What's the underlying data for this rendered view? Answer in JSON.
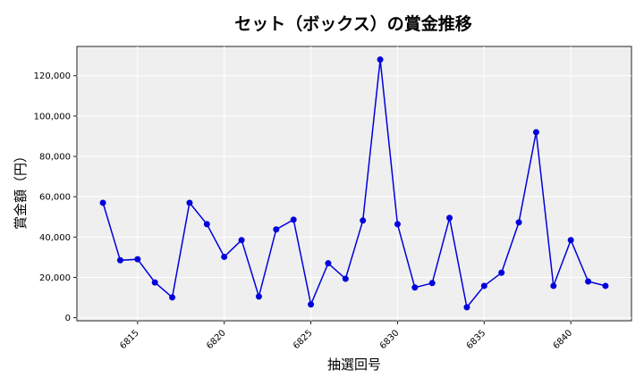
{
  "chart_data": {
    "type": "line",
    "title": "セット（ボックス）の賞金推移",
    "xlabel": "抽選回号",
    "ylabel": "賞金額（円）",
    "x": [
      6813,
      6814,
      6815,
      6816,
      6817,
      6818,
      6819,
      6820,
      6821,
      6822,
      6823,
      6824,
      6825,
      6826,
      6827,
      6828,
      6829,
      6830,
      6831,
      6832,
      6833,
      6834,
      6835,
      6836,
      6837,
      6838,
      6839,
      6840,
      6841,
      6842
    ],
    "series": [
      {
        "name": "賞金額",
        "color": "#0000dd",
        "marker": "circle",
        "values": [
          57000,
          28500,
          29000,
          17500,
          10100,
          57000,
          46400,
          30200,
          38500,
          10500,
          43800,
          48600,
          6600,
          27000,
          19300,
          48200,
          128000,
          46400,
          15000,
          17200,
          49500,
          5200,
          15800,
          22300,
          47300,
          92000,
          15800,
          38500,
          18000,
          15800
        ]
      }
    ],
    "xticks": [
      6815,
      6820,
      6825,
      6830,
      6835,
      6840
    ],
    "yticks": [
      0,
      20000,
      40000,
      60000,
      80000,
      100000,
      120000
    ],
    "ytick_labels": [
      "0",
      "20,000",
      "40,000",
      "60,000",
      "80,000",
      "100,000",
      "120,000"
    ],
    "xlim": [
      6811.5,
      6843.5
    ],
    "ylim": [
      -1500,
      134500
    ],
    "grid": true,
    "background": "#efefef",
    "legend": null
  }
}
